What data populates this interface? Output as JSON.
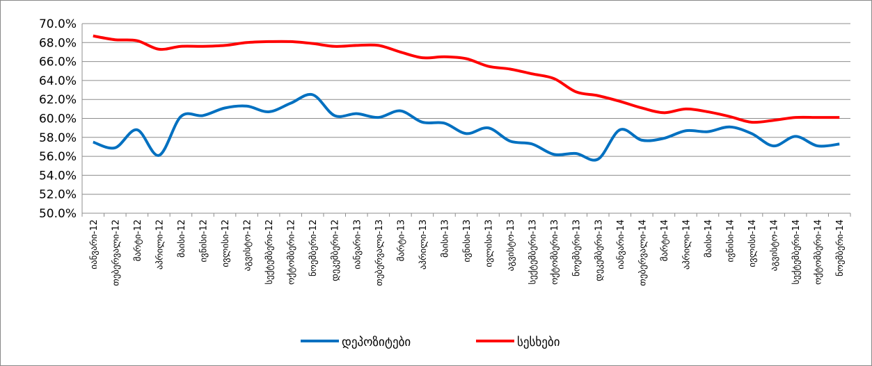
{
  "chart_data": {
    "type": "line",
    "categories": [
      "იანვარი-12",
      "თებერვალი-12",
      "მარტი-12",
      "აპრილი-12",
      "მაისი-12",
      "ივნისი-12",
      "ივლისი-12",
      "აგვისტო-12",
      "სექტემბერი-12",
      "ოქტომბერი-12",
      "ნოემბერი-12",
      "დეკემბერი-12",
      "იანვარი-13",
      "თებერვალი-13",
      "მარტი-13",
      "აპრილი-13",
      "მაისი-13",
      "ივნისი-13",
      "ივლისი-13",
      "აგვისტო-13",
      "სექტემბერი-13",
      "ოქტომბერი-13",
      "ნოემბერი-13",
      "დეკემბერი-13",
      "იანვარი-14",
      "თებერვალი-14",
      "მარტი-14",
      "აპრილი-14",
      "მაისი-14",
      "ივნისი-14",
      "ივლისი-14",
      "აგვისტო-14",
      "სექტემბერი-14",
      "ოქტომბერი-14",
      "ნოემბერი-14"
    ],
    "series": [
      {
        "name": "დეპოზიტები",
        "color": "#0070c0",
        "values": [
          57.5,
          56.9,
          58.8,
          56.1,
          60.2,
          60.3,
          61.1,
          61.3,
          60.7,
          61.6,
          62.5,
          60.3,
          60.5,
          60.1,
          60.8,
          59.6,
          59.5,
          58.4,
          59.0,
          57.6,
          57.3,
          56.2,
          56.3,
          55.7,
          58.8,
          57.7,
          57.9,
          58.7,
          58.6,
          59.1,
          58.4,
          57.1,
          58.1,
          57.1,
          57.3
        ]
      },
      {
        "name": "სესხები",
        "color": "#ff0000",
        "values": [
          68.7,
          68.3,
          68.2,
          67.3,
          67.6,
          67.6,
          67.7,
          68.0,
          68.1,
          68.1,
          67.9,
          67.6,
          67.7,
          67.7,
          67.0,
          66.4,
          66.5,
          66.3,
          65.5,
          65.2,
          64.7,
          64.2,
          62.8,
          62.4,
          61.8,
          61.1,
          60.6,
          61.0,
          60.7,
          60.2,
          59.6,
          59.8,
          60.1,
          60.1,
          60.1
        ]
      }
    ],
    "ylim": [
      50,
      70
    ],
    "yticks": [
      {
        "value": 50,
        "label": "50.0%"
      },
      {
        "value": 52,
        "label": "52.0%"
      },
      {
        "value": 54,
        "label": "54.0%"
      },
      {
        "value": 56,
        "label": "56.0%"
      },
      {
        "value": 58,
        "label": "58.0%"
      },
      {
        "value": 60,
        "label": "60.0%"
      },
      {
        "value": 62,
        "label": "62.0%"
      },
      {
        "value": 64,
        "label": "64.0%"
      },
      {
        "value": 66,
        "label": "66.0%"
      },
      {
        "value": 68,
        "label": "68.0%"
      },
      {
        "value": 70,
        "label": "70.0%"
      }
    ],
    "grid": true,
    "legend": "bottom"
  }
}
